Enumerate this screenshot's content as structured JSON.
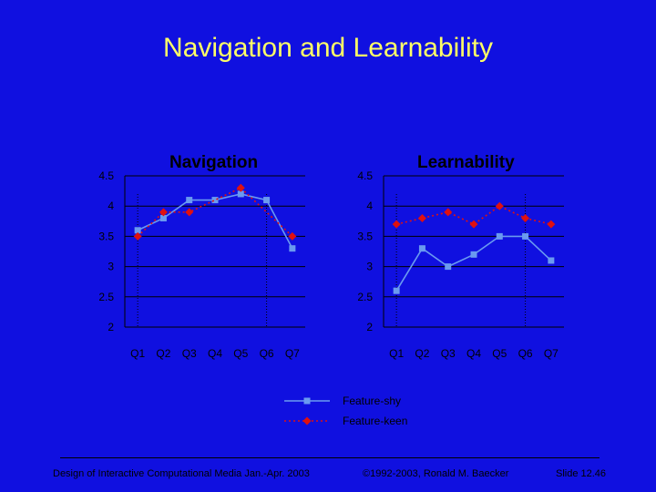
{
  "slide": {
    "title": "Navigation and Learnability",
    "footer_left": "Design of Interactive Computational Media Jan.-Apr. 2003",
    "footer_center": "©1992-2003, Ronald M. Baecker",
    "footer_right": "Slide 12.46"
  },
  "colors": {
    "background": "#1010e0",
    "title": "#ffff66",
    "series_shy": "#6a9af0",
    "series_keen": "#e01010",
    "gridline": "#000000"
  },
  "chart_data": [
    {
      "type": "line",
      "title": "Navigation",
      "categories": [
        "Q1",
        "Q2",
        "Q3",
        "Q4",
        "Q5",
        "Q6",
        "Q7"
      ],
      "y_ticks": [
        "2",
        "2.5",
        "3",
        "3.5",
        "4",
        "4.5"
      ],
      "ylim": [
        2,
        4.5
      ],
      "grid": true,
      "series": [
        {
          "name": "Feature-shy",
          "values": [
            3.6,
            3.8,
            4.1,
            4.1,
            4.2,
            4.1,
            3.3
          ]
        },
        {
          "name": "Feature-keen",
          "values": [
            3.5,
            3.9,
            3.9,
            null,
            4.3,
            null,
            3.5
          ]
        }
      ]
    },
    {
      "type": "line",
      "title": "Learnability",
      "categories": [
        "Q1",
        "Q2",
        "Q3",
        "Q4",
        "Q5",
        "Q6",
        "Q7"
      ],
      "y_ticks": [
        "2",
        "2.5",
        "3",
        "3.5",
        "4",
        "4.5"
      ],
      "ylim": [
        2,
        4.5
      ],
      "grid": true,
      "series": [
        {
          "name": "Feature-shy",
          "values": [
            2.6,
            3.3,
            3.0,
            3.2,
            3.5,
            3.5,
            3.1
          ]
        },
        {
          "name": "Feature-keen",
          "values": [
            3.7,
            3.8,
            3.9,
            3.7,
            4.0,
            3.8,
            3.7
          ]
        }
      ]
    }
  ],
  "legend": {
    "placement": "bottom-center",
    "items": [
      "Feature-shy",
      "Feature-keen"
    ]
  }
}
